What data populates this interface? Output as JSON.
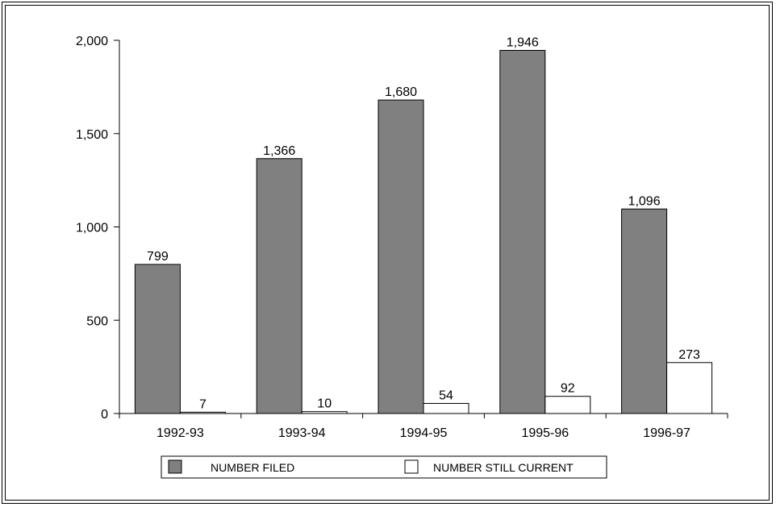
{
  "chart_data": {
    "type": "bar",
    "categories": [
      "1992-93",
      "1993-94",
      "1994-95",
      "1995-96",
      "1996-97"
    ],
    "series": [
      {
        "name": "NUMBER FILED",
        "values": [
          799,
          1366,
          1680,
          1946,
          1096
        ],
        "labels": [
          "799",
          "1,366",
          "1,680",
          "1,946",
          "1,096"
        ],
        "color": "#808080"
      },
      {
        "name": "NUMBER STILL CURRENT",
        "values": [
          7,
          10,
          54,
          92,
          273
        ],
        "labels": [
          "7",
          "10",
          "54",
          "92",
          "273"
        ],
        "color": "#ffffff"
      }
    ],
    "ylim": [
      0,
      2000
    ],
    "yticks": [
      0,
      500,
      1000,
      1500,
      2000
    ],
    "ytick_labels": [
      "0",
      "500",
      "1,000",
      "1,500",
      "2,000"
    ],
    "title": "",
    "xlabel": "",
    "ylabel": "",
    "legend_position": "bottom",
    "grid": false
  }
}
